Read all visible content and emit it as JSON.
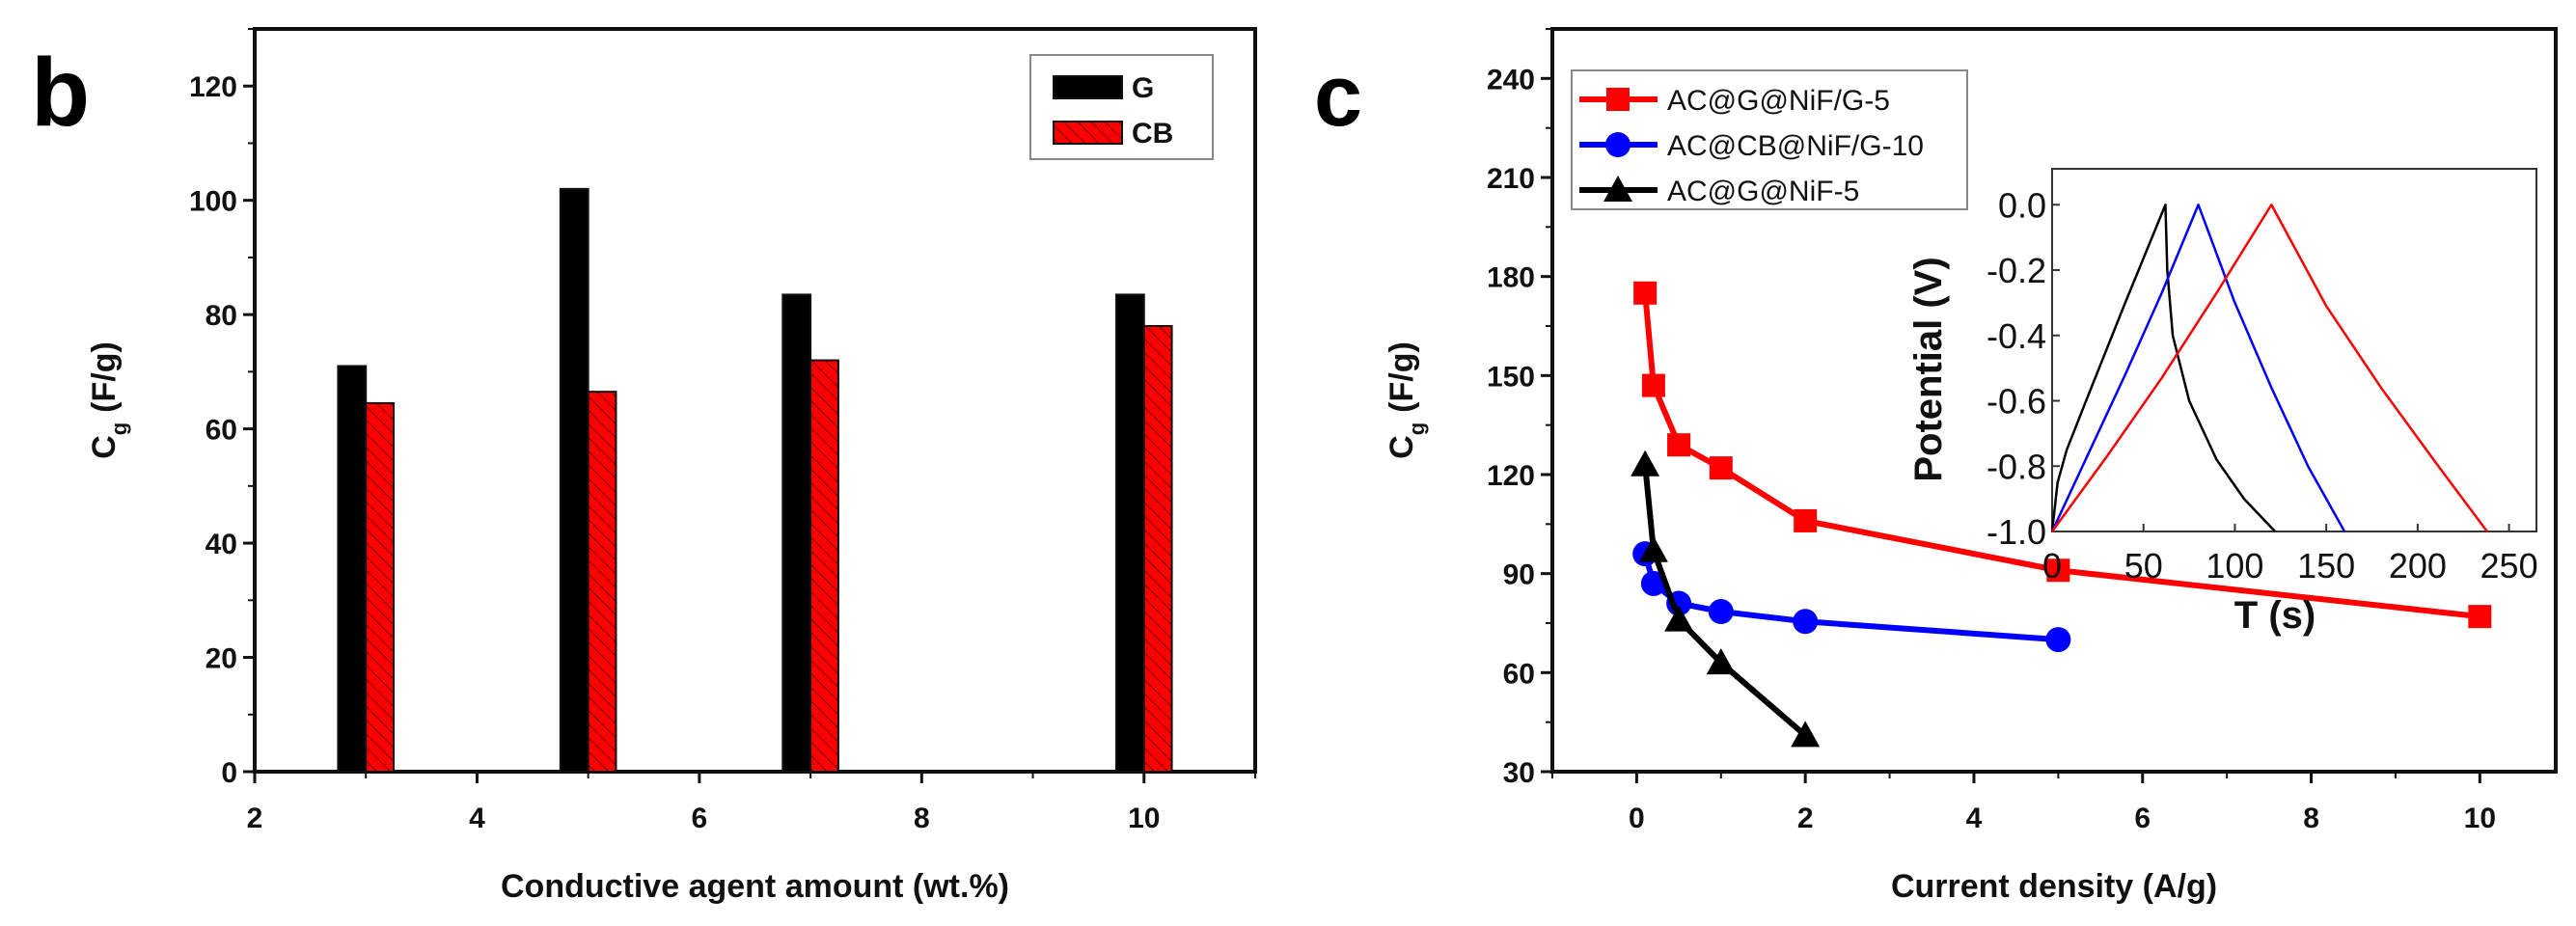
{
  "chart_data": [
    {
      "panel": "b",
      "type": "bar",
      "xlabel": "Conductive agent amount (wt.%)",
      "ylabel": "C",
      "ylabel_sub": "g",
      "ylabel_unit": "(F/g)",
      "xlim": [
        2,
        11
      ],
      "ylim": [
        0,
        130
      ],
      "xticks": [
        2,
        4,
        6,
        8,
        10
      ],
      "yticks": [
        0,
        20,
        40,
        60,
        80,
        100,
        120
      ],
      "legend_position": "top-right",
      "x": [
        3,
        5,
        7,
        10
      ],
      "series": [
        {
          "name": "G",
          "color": "#000000",
          "values": [
            71,
            102,
            83.5,
            83.5
          ]
        },
        {
          "name": "CB",
          "color": "#ff0000",
          "hatched": true,
          "values": [
            64.5,
            66.5,
            72,
            78
          ]
        }
      ]
    },
    {
      "panel": "c",
      "type": "line",
      "xlabel": "Current density (A/g)",
      "ylabel": "C",
      "ylabel_sub": "g",
      "ylabel_unit": "(F/g)",
      "xlim": [
        -1,
        10.9
      ],
      "ylim": [
        30,
        255
      ],
      "xticks": [
        0,
        2,
        4,
        6,
        8,
        10
      ],
      "yticks": [
        30,
        60,
        90,
        120,
        150,
        180,
        210,
        240
      ],
      "legend_position": "top-left",
      "series": [
        {
          "name": "AC@G@NiF/G-5",
          "color": "#ff0000",
          "marker": "square",
          "x": [
            0.1,
            0.2,
            0.5,
            1,
            2,
            5,
            10
          ],
          "y": [
            175,
            147,
            129,
            122,
            106,
            91,
            77
          ]
        },
        {
          "name": "AC@CB@NiF/G-10",
          "color": "#0000ff",
          "marker": "circle",
          "x": [
            0.1,
            0.2,
            0.5,
            1,
            2,
            5
          ],
          "y": [
            96,
            87,
            81,
            78.5,
            75.5,
            70
          ]
        },
        {
          "name": "AC@G@NiF-5",
          "color": "#000000",
          "marker": "triangle",
          "x": [
            0.1,
            0.2,
            0.5,
            1,
            2
          ],
          "y": [
            123,
            97,
            76,
            63,
            41
          ]
        }
      ],
      "inset": {
        "type": "line",
        "xlabel": "T (s)",
        "ylabel": "Potential (V)",
        "xlim": [
          0,
          265
        ],
        "ylim": [
          -1.0,
          0.11
        ],
        "xticks": [
          "0",
          "50",
          "100",
          "150",
          "200",
          "250"
        ],
        "xtick_values": [
          0,
          50,
          100,
          150,
          200,
          250
        ],
        "yticks": [
          "0.0",
          "-0.2",
          "-0.4",
          "-0.6",
          "-0.8",
          "-1.0"
        ],
        "ytick_values": [
          0,
          -0.2,
          -0.4,
          -0.6,
          -0.8,
          -1.0
        ],
        "series": [
          {
            "name": "AC@G@NiF-5",
            "color": "#000000",
            "points": [
              [
                0,
                -1
              ],
              [
                3,
                -0.85
              ],
              [
                8,
                -0.75
              ],
              [
                20,
                -0.58
              ],
              [
                40,
                -0.3
              ],
              [
                62,
                0
              ],
              [
                63,
                -0.2
              ],
              [
                66,
                -0.4
              ],
              [
                75,
                -0.6
              ],
              [
                90,
                -0.78
              ],
              [
                105,
                -0.9
              ],
              [
                122,
                -1
              ]
            ]
          },
          {
            "name": "AC@CB@NiF/G-10",
            "color": "#0000ff",
            "points": [
              [
                0,
                -1
              ],
              [
                20,
                -0.76
              ],
              [
                40,
                -0.52
              ],
              [
                60,
                -0.27
              ],
              [
                80,
                0
              ],
              [
                100,
                -0.3
              ],
              [
                120,
                -0.56
              ],
              [
                140,
                -0.8
              ],
              [
                160,
                -1
              ]
            ]
          },
          {
            "name": "AC@G@NiF/G-5",
            "color": "#ff0000",
            "points": [
              [
                0,
                -1
              ],
              [
                30,
                -0.77
              ],
              [
                60,
                -0.53
              ],
              [
                90,
                -0.27
              ],
              [
                120,
                0
              ],
              [
                150,
                -0.31
              ],
              [
                180,
                -0.56
              ],
              [
                210,
                -0.79
              ],
              [
                238,
                -1
              ]
            ]
          }
        ]
      }
    }
  ],
  "panels": {
    "b": "b",
    "c": "c"
  }
}
